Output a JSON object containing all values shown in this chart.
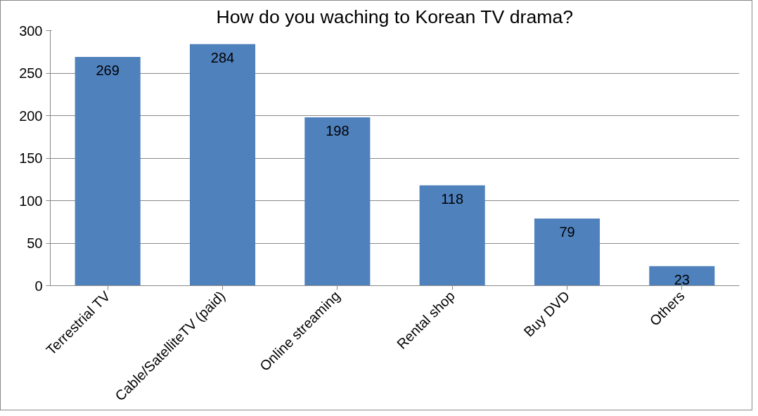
{
  "chart_data": {
    "type": "bar",
    "title": "How do you waching to Korean TV drama?",
    "categories": [
      "Terrestrial TV",
      "Cable/SatelliteTV (paid)",
      "Online streaming",
      "Rental shop",
      "Buy DVD",
      "Others"
    ],
    "values": [
      269,
      284,
      198,
      118,
      79,
      23
    ],
    "color": "#4f81bd",
    "ylim": [
      0,
      300
    ],
    "yticks": [
      0,
      50,
      100,
      150,
      200,
      250,
      300
    ],
    "grid": "y",
    "data_labels": true
  }
}
